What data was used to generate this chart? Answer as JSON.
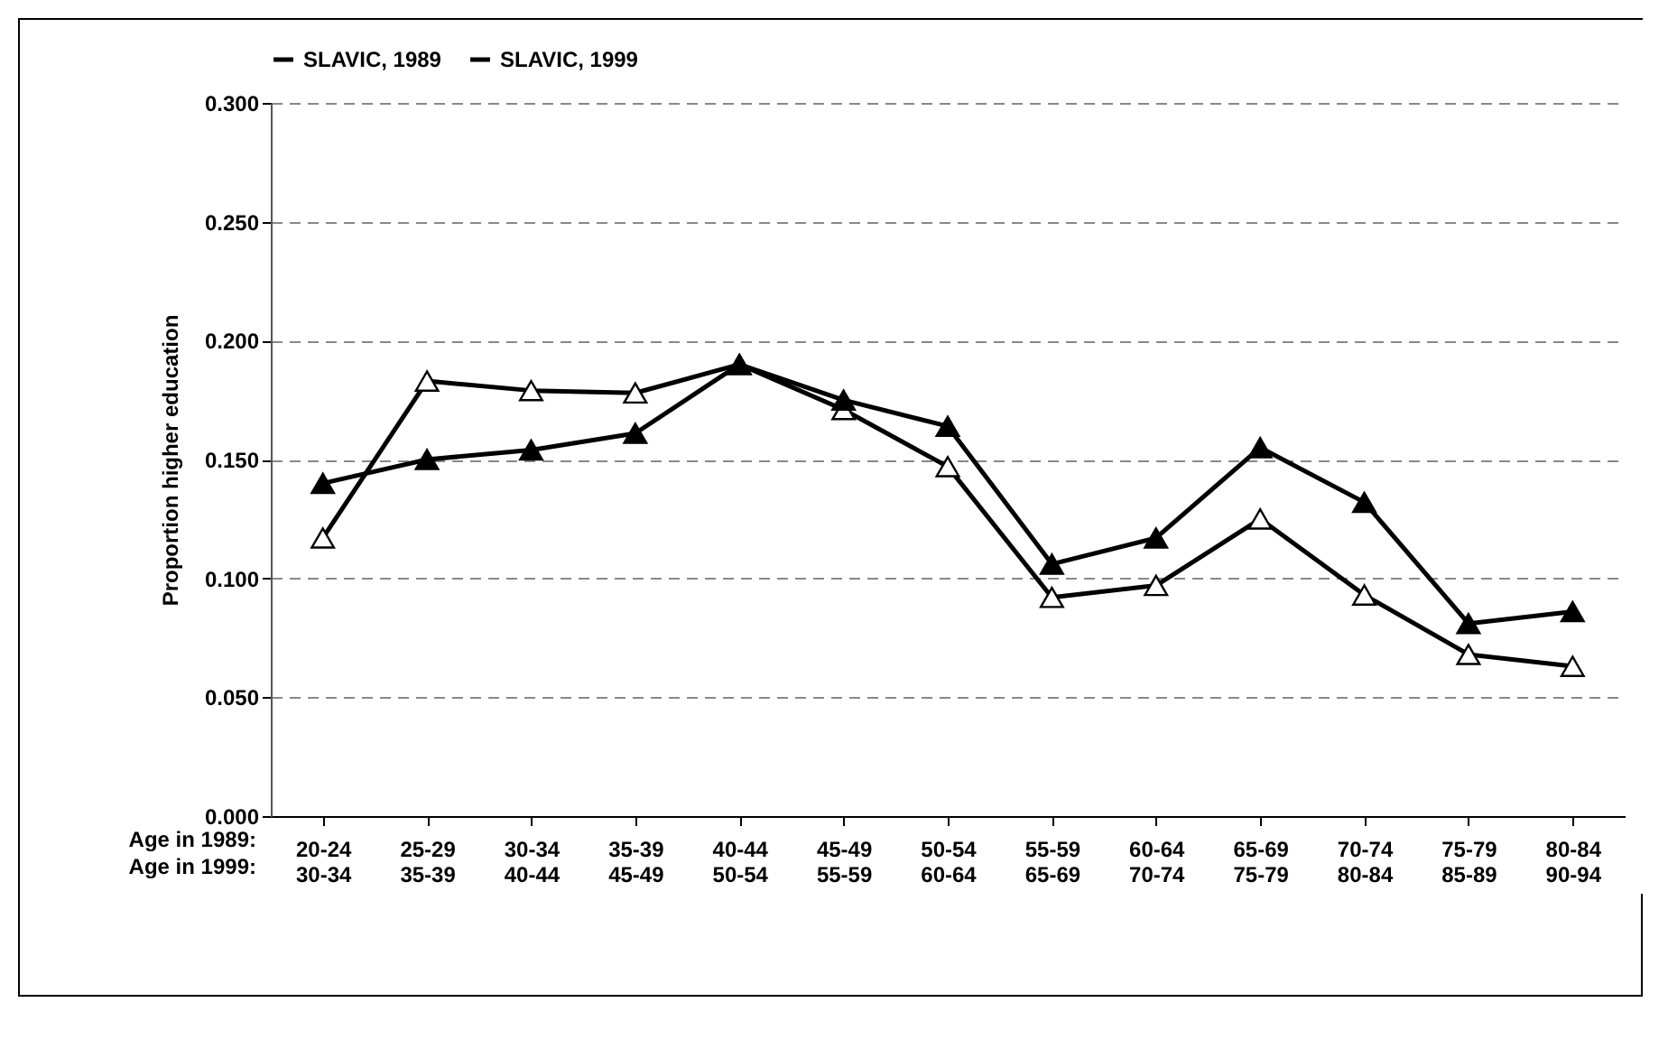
{
  "chart_data": {
    "type": "line",
    "ylabel": "Proportion higher education",
    "categories": [
      "20-24\n30-34",
      "25-29\n35-39",
      "30-34\n40-44",
      "35-39\n45-49",
      "40-44\n50-54",
      "45-49\n55-59",
      "50-54\n60-64",
      "55-59\n65-69",
      "60-64\n70-74",
      "65-69\n75-79",
      "70-74\n80-84",
      "75-79\n85-89",
      "80-84\n90-94"
    ],
    "series": [
      {
        "name": "SLAVIC, 1989",
        "color": "#000000",
        "colors": [
          "#ffffff",
          "#ffffff",
          "#ffffff",
          "#ffffff",
          "#ffffff",
          "#ffffff",
          "#ffffff",
          "#ffffff",
          "#ffffff",
          "#ffffff",
          "#ffffff",
          "#ffffff",
          "#ffffff"
        ],
        "values": [
          0.117,
          0.183,
          0.179,
          0.178,
          0.19,
          0.171,
          0.147,
          0.092,
          0.097,
          0.125,
          0.093,
          0.068,
          0.063
        ]
      },
      {
        "name": "SLAVIC, 1999",
        "color": "#000000",
        "colors": [
          "#000000",
          "#000000",
          "#000000",
          "#000000",
          "#000000",
          "#000000",
          "#000000",
          "#000000",
          "#000000",
          "#000000",
          "#000000",
          "#000000",
          "#000000"
        ],
        "values": [
          0.14,
          0.15,
          0.154,
          0.161,
          0.19,
          0.175,
          0.164,
          0.106,
          0.117,
          0.155,
          0.132,
          0.081,
          0.086
        ]
      }
    ],
    "ylim": [
      0,
      0.3
    ],
    "yticks": [
      {
        "value": 0,
        "label": "0.000"
      },
      {
        "value": 0.05,
        "label": "0.050"
      },
      {
        "value": 0.1,
        "label": "0.100"
      },
      {
        "value": 0.15,
        "label": "0.150"
      },
      {
        "value": 0.2,
        "label": "0.200"
      },
      {
        "value": 0.25,
        "label": "0.250"
      },
      {
        "value": 0.3,
        "label": "0.300"
      }
    ],
    "annotations": [
      "Age in 1989:",
      "Age in 1999:"
    ],
    "grid": "y",
    "legend": "top",
    "marker": "triangle"
  }
}
